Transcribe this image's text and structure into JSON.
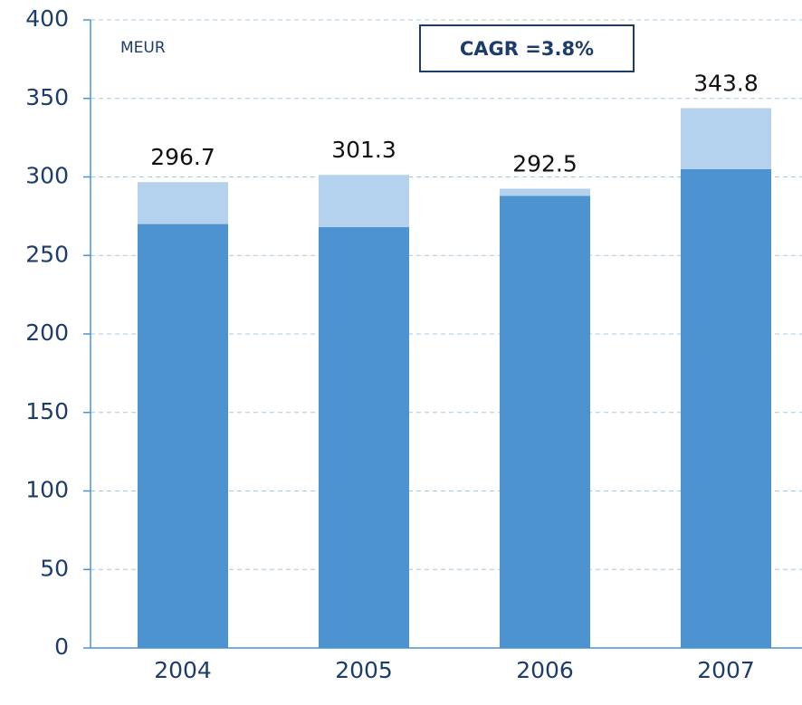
{
  "chart_data": {
    "type": "stacked_bar",
    "unit_label": "MEUR",
    "annotation": "CAGR =3.8%",
    "categories": [
      "2004",
      "2005",
      "2006",
      "2007"
    ],
    "series": [
      {
        "color": "#4d93cf",
        "values": [
          270.0,
          268.0,
          288.0,
          305.0
        ]
      },
      {
        "color": "#b4d1ee",
        "values": [
          26.7,
          33.3,
          4.5,
          38.8
        ]
      }
    ],
    "total_labels": [
      296.7,
      301.3,
      292.5,
      343.8
    ],
    "ylim": [
      0,
      400
    ],
    "yticks": [
      0,
      50,
      100,
      150,
      200,
      250,
      300,
      350,
      400
    ],
    "grid": true
  }
}
